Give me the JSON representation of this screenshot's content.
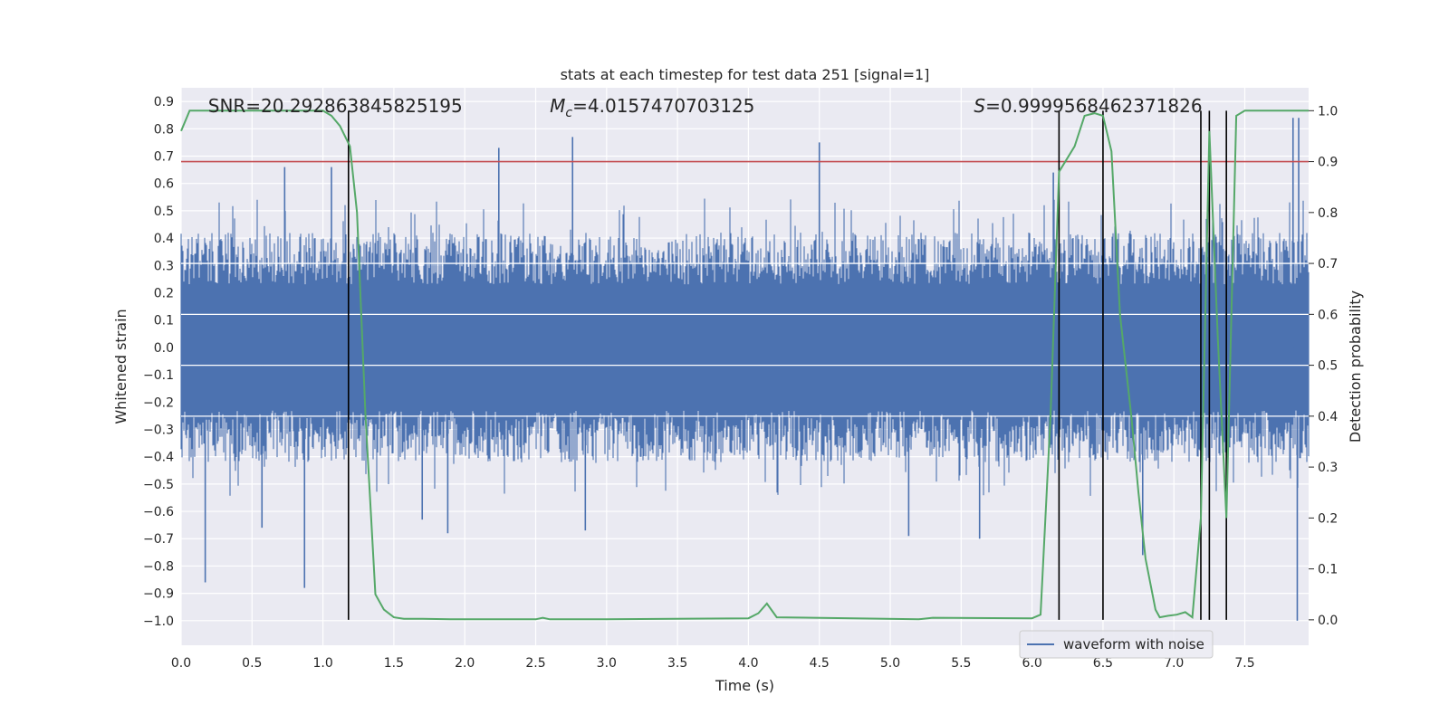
{
  "chart_data": {
    "type": "line",
    "title": "stats at each timestep for test data 251 [signal=1]",
    "xlabel": "Time (s)",
    "ylabel_left": "Whitened strain",
    "ylabel_right": "Detection probability",
    "xlim": [
      0.0,
      7.95
    ],
    "ylim_left": [
      -1.09,
      0.95
    ],
    "ylim_right": [
      -0.05,
      1.045
    ],
    "x_ticks": [
      0.0,
      0.5,
      1.0,
      1.5,
      2.0,
      2.5,
      3.0,
      3.5,
      4.0,
      4.5,
      5.0,
      5.5,
      6.0,
      6.5,
      7.0,
      7.5
    ],
    "x_tick_labels": [
      "0.0",
      "0.5",
      "1.0",
      "1.5",
      "2.0",
      "2.5",
      "3.0",
      "3.5",
      "4.0",
      "4.5",
      "5.0",
      "5.5",
      "6.0",
      "6.5",
      "7.0",
      "7.5"
    ],
    "y_left_ticks": [
      0.9,
      0.8,
      0.7,
      0.6,
      0.5,
      0.4,
      0.3,
      0.2,
      0.1,
      0.0,
      -0.1,
      -0.2,
      -0.3,
      -0.4,
      -0.5,
      -0.6,
      -0.7,
      -0.8,
      -0.9,
      -1.0
    ],
    "y_left_tick_labels": [
      "0.9",
      "0.8",
      "0.7",
      "0.6",
      "0.5",
      "0.4",
      "0.3",
      "0.2",
      "0.1",
      "0.0",
      "−0.1",
      "−0.2",
      "−0.3",
      "−0.4",
      "−0.5",
      "−0.6",
      "−0.7",
      "−0.8",
      "−0.9",
      "−1.0"
    ],
    "y_right_ticks": [
      1.0,
      0.9,
      0.8,
      0.7,
      0.6,
      0.5,
      0.4,
      0.3,
      0.2,
      0.1,
      0.0
    ],
    "y_right_tick_labels": [
      "1.0",
      "0.9",
      "0.8",
      "0.7",
      "0.6",
      "0.5",
      "0.4",
      "0.3",
      "0.2",
      "0.1",
      "0.0"
    ],
    "stats": {
      "snr_label": "SNR=20.292863845825195",
      "mc_symbol": "M",
      "mc_subscript": "c",
      "mc_value": "=4.0157470703125",
      "s_symbol": "S",
      "s_value": "=0.9999568462371826"
    },
    "threshold_line": {
      "y_right": 0.9,
      "color": "#c44e52"
    },
    "detection_markers_x": [
      1.18,
      6.19,
      6.5,
      7.19,
      7.25,
      7.37
    ],
    "waveform_series": {
      "name": "waveform with noise",
      "color": "#4c72b0",
      "noise_envelope": 0.42,
      "spikes": [
        {
          "x": 0.17,
          "y": -0.86
        },
        {
          "x": 0.57,
          "y": -0.66
        },
        {
          "x": 0.73,
          "y": 0.66
        },
        {
          "x": 0.87,
          "y": -0.88
        },
        {
          "x": 1.06,
          "y": 0.66
        },
        {
          "x": 1.7,
          "y": -0.63
        },
        {
          "x": 1.88,
          "y": -0.68
        },
        {
          "x": 2.24,
          "y": 0.73
        },
        {
          "x": 2.76,
          "y": 0.77
        },
        {
          "x": 2.85,
          "y": -0.67
        },
        {
          "x": 4.5,
          "y": 0.75
        },
        {
          "x": 5.13,
          "y": -0.69
        },
        {
          "x": 5.63,
          "y": -0.7
        },
        {
          "x": 6.15,
          "y": 0.64
        },
        {
          "x": 6.78,
          "y": -0.76
        },
        {
          "x": 7.84,
          "y": 0.84
        },
        {
          "x": 7.87,
          "y": -1.0
        },
        {
          "x": 7.88,
          "y": 0.84
        }
      ]
    },
    "probability_series": {
      "color": "#55a868",
      "x": [
        0.0,
        0.06,
        0.3,
        0.6,
        0.9,
        1.0,
        1.06,
        1.12,
        1.19,
        1.24,
        1.3,
        1.37,
        1.43,
        1.5,
        1.57,
        1.7,
        1.9,
        2.5,
        2.55,
        2.6,
        3.0,
        4.0,
        4.07,
        4.13,
        4.2,
        5.2,
        5.3,
        6.0,
        6.06,
        6.13,
        6.19,
        6.3,
        6.37,
        6.44,
        6.5,
        6.56,
        6.62,
        6.7,
        6.75,
        6.8,
        6.87,
        6.9,
        6.96,
        7.02,
        7.08,
        7.13,
        7.19,
        7.25,
        7.31,
        7.37,
        7.44,
        7.5,
        7.6,
        7.95
      ],
      "y": [
        0.96,
        1.0,
        1.0,
        1.0,
        1.0,
        1.0,
        0.99,
        0.97,
        0.93,
        0.8,
        0.4,
        0.05,
        0.02,
        0.005,
        0.002,
        0.002,
        0.001,
        0.001,
        0.004,
        0.001,
        0.001,
        0.003,
        0.013,
        0.032,
        0.005,
        0.001,
        0.004,
        0.003,
        0.01,
        0.4,
        0.88,
        0.93,
        0.99,
        0.995,
        0.99,
        0.92,
        0.6,
        0.4,
        0.25,
        0.12,
        0.02,
        0.005,
        0.008,
        0.01,
        0.015,
        0.005,
        0.2,
        0.96,
        0.55,
        0.2,
        0.99,
        1.0,
        1.0,
        1.0
      ]
    }
  }
}
